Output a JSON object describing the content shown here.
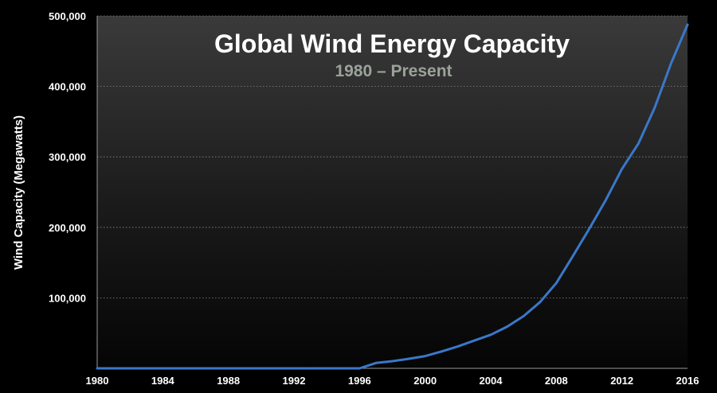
{
  "chart_data": {
    "type": "line",
    "title": "Global Wind Energy Capacity",
    "subtitle": "1980 – Present",
    "xlabel": "",
    "ylabel": "Wind Capacity (Megawatts)",
    "xlim": [
      1980,
      2016
    ],
    "ylim": [
      0,
      500000
    ],
    "x_ticks": [
      1980,
      1984,
      1988,
      1992,
      1996,
      2000,
      2004,
      2008,
      2012,
      2016
    ],
    "y_ticks": [
      100000,
      200000,
      300000,
      400000,
      500000
    ],
    "x_tick_labels": [
      "1980",
      "1984",
      "1988",
      "1992",
      "1996",
      "2000",
      "2004",
      "2008",
      "2012",
      "2016"
    ],
    "y_tick_labels": [
      "100,000",
      "200,000",
      "300,000",
      "400,000",
      "500,000"
    ],
    "grid": "horizontal dotted",
    "series": [
      {
        "color": "#3a78c9",
        "x": [
          1980,
          1981,
          1982,
          1983,
          1984,
          1985,
          1986,
          1987,
          1988,
          1989,
          1990,
          1991,
          1992,
          1993,
          1994,
          1995,
          1996,
          1997,
          1998,
          1999,
          2000,
          2001,
          2002,
          2003,
          2004,
          2005,
          2006,
          2007,
          2008,
          2009,
          2010,
          2011,
          2012,
          2013,
          2014,
          2015,
          2016
        ],
        "values": [
          0,
          0,
          0,
          0,
          0,
          0,
          0,
          0,
          0,
          0,
          0,
          0,
          0,
          0,
          0,
          0,
          0,
          7600,
          10200,
          13600,
          17400,
          23900,
          31100,
          39400,
          47600,
          59100,
          74000,
          93900,
          121000,
          158900,
          197600,
          238100,
          283000,
          318700,
          369700,
          432900,
          487600
        ]
      }
    ]
  }
}
